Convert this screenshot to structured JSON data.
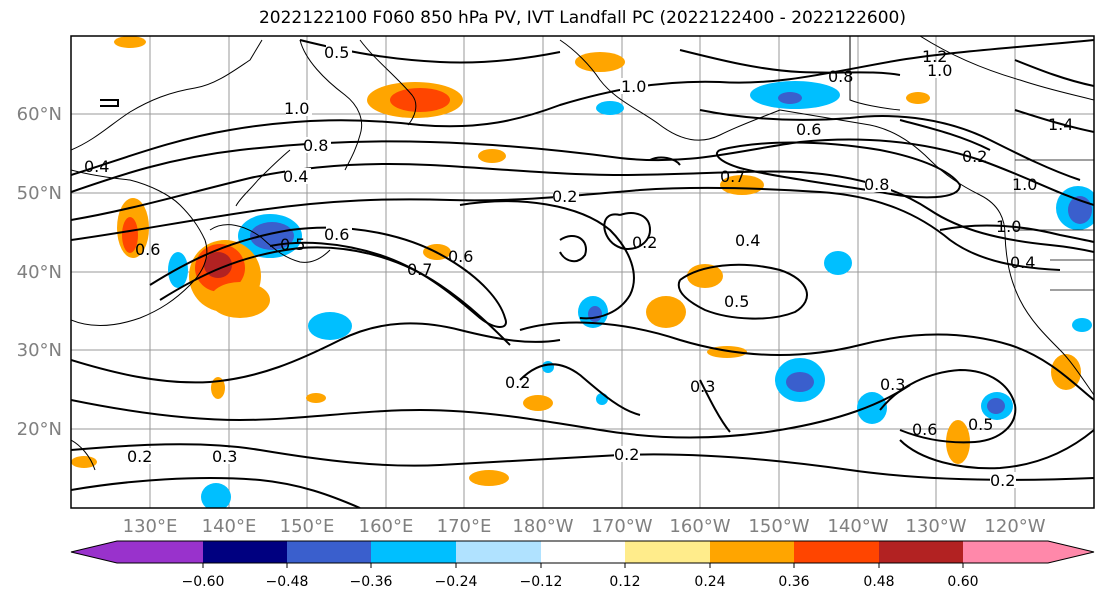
{
  "title": "2022122100 F060 850 hPa PV, IVT Landfall PC (2022122400 - 2022122600)",
  "lat_labels": [
    "60°N",
    "50°N",
    "40°N",
    "30°N",
    "20°N"
  ],
  "lon_labels": [
    "130°E",
    "140°E",
    "150°E",
    "160°E",
    "170°E",
    "180°W",
    "170°W",
    "160°W",
    "150°W",
    "140°W",
    "130°W",
    "120°W"
  ],
  "colorbar": {
    "ticks": [
      "−0.60",
      "−0.48",
      "−0.36",
      "−0.24",
      "−0.12",
      "0.12",
      "0.24",
      "0.36",
      "0.48",
      "0.60"
    ],
    "colors": [
      "#9932cc",
      "#000080",
      "#3a5fcd",
      "#00bfff",
      "#b0e2ff",
      "#ffffff",
      "#ffec8b",
      "#ffa500",
      "#ff4500",
      "#b22222",
      "#ff88aa"
    ]
  },
  "contour_labels": [
    "0.5",
    "1.0",
    "0.8",
    "0.4",
    "0.6",
    "0.5",
    "0.7",
    "0.6",
    "0.2",
    "0.4",
    "0.5",
    "0.2",
    "0.3",
    "0.2",
    "0.2",
    "0.6",
    "0.3",
    "0.2",
    "1.2",
    "1.0",
    "1.4",
    "1.0",
    "1.0",
    "0.4",
    "0.8",
    "0.6",
    "0.2",
    "0.7",
    "0.6",
    "0.3",
    "1.0",
    "0.5",
    "0.4",
    "0.2",
    "0.8"
  ]
}
